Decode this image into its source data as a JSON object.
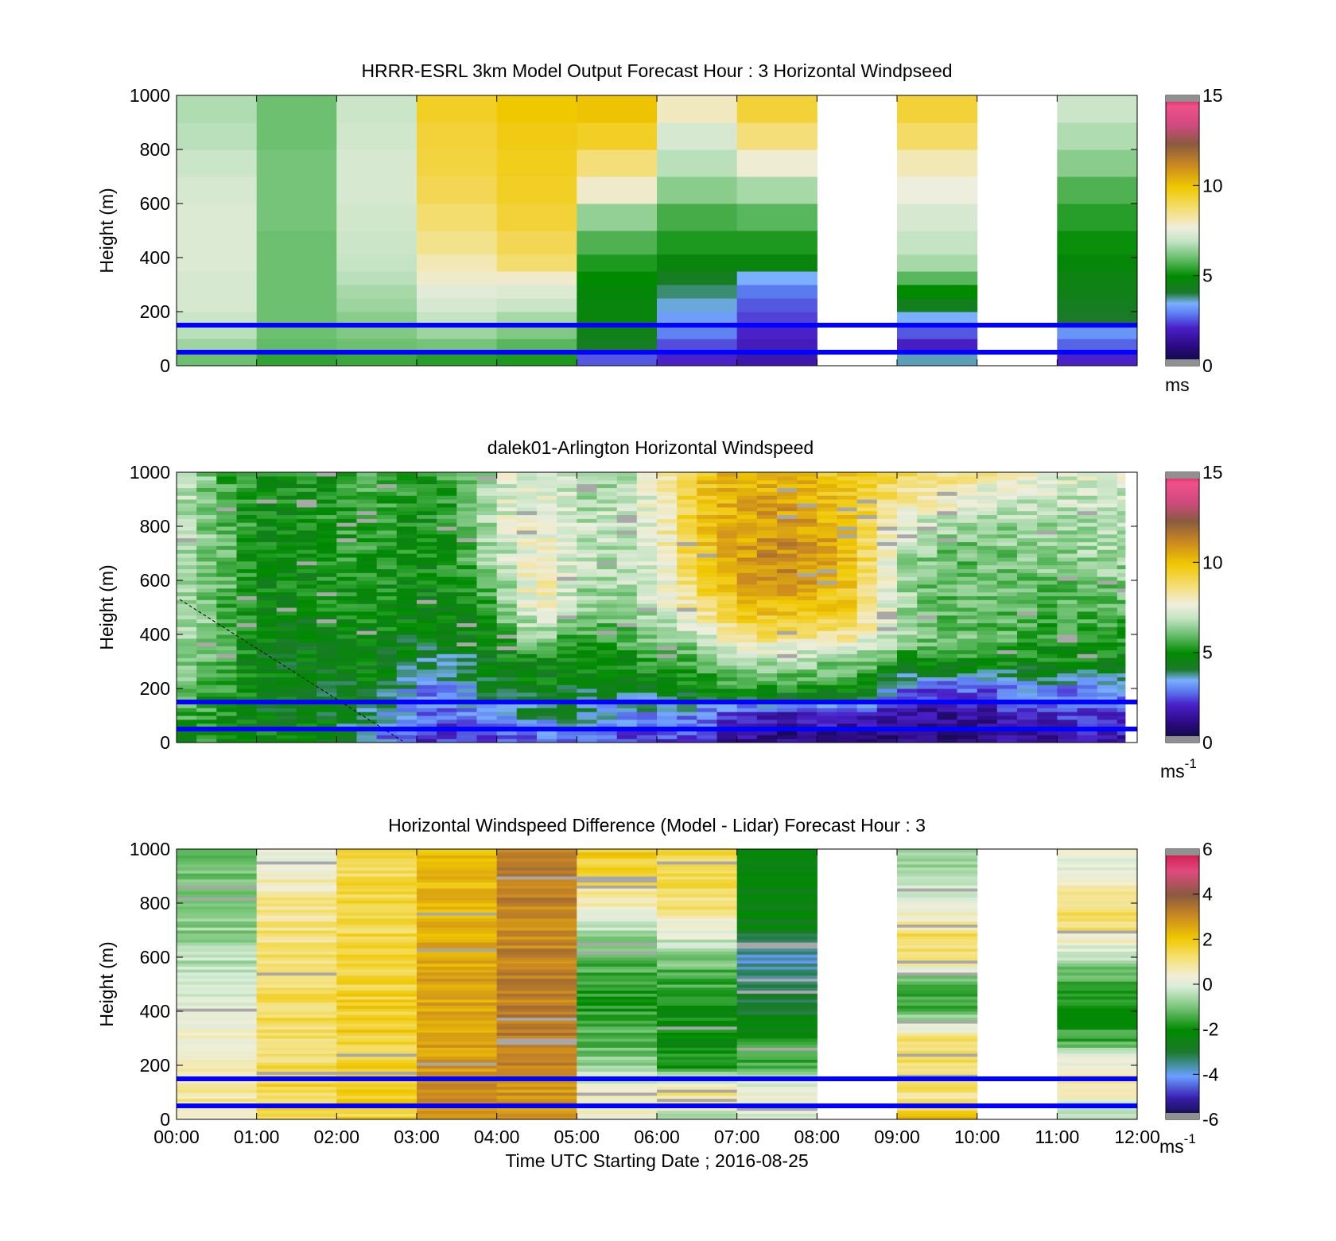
{
  "figure": {
    "xlabel": "Time UTC  Starting Date ; 2016-08-25",
    "x_ticks": [
      "00:00",
      "01:00",
      "02:00",
      "03:00",
      "04:00",
      "05:00",
      "06:00",
      "07:00",
      "08:00",
      "09:00",
      "10:00",
      "11:00",
      "12:00"
    ],
    "guide_line_color": "#0000ff",
    "guide_line_heights_m": [
      150,
      50
    ]
  },
  "panels": [
    {
      "title": "HRRR-ESRL 3km Model Output   Forecast Hour : 3 Horizontal Windpseed",
      "colorbar_unit": "ms",
      "unit_superscript": ""
    },
    {
      "title": "dalek01-Arlington  Horizontal Windspeed",
      "colorbar_unit": "ms",
      "unit_superscript": "-1"
    },
    {
      "title": "Horizontal Windspeed Difference (Model - Lidar) Forecast Hour : 3",
      "colorbar_unit": "ms",
      "unit_superscript": "-1"
    }
  ],
  "chart_data": [
    {
      "type": "heatmap",
      "title": "HRRR-ESRL 3km Model Output   Forecast Hour : 3 Horizontal Windpseed",
      "xlabel": "",
      "ylabel": "Height (m)",
      "y_ticks": [
        "0",
        "200",
        "400",
        "600",
        "800",
        "1000"
      ],
      "ylim": [
        0,
        1000
      ],
      "xlim_hours": [
        0,
        12
      ],
      "colorbar": {
        "ticks": [
          "0",
          "5",
          "10",
          "15"
        ],
        "range": [
          0,
          15
        ],
        "unit": "ms"
      },
      "levels_m": [
        25,
        75,
        125,
        175,
        225,
        275,
        325,
        375,
        450,
        550,
        650,
        750,
        850,
        950
      ],
      "columns": [
        {
          "hour_start": 0,
          "values": [
            6.0,
            6.5,
            6.8,
            7.0,
            7.2,
            7.2,
            7.2,
            7.3,
            7.3,
            7.3,
            7.2,
            7.0,
            6.8,
            6.7
          ]
        },
        {
          "hour_start": 1,
          "values": [
            5.4,
            5.9,
            6.0,
            6.0,
            6.0,
            6.0,
            6.0,
            6.0,
            6.0,
            6.1,
            6.1,
            6.1,
            6.0,
            6.0
          ]
        },
        {
          "hour_start": 2,
          "values": [
            5.5,
            6.0,
            6.2,
            6.3,
            6.5,
            6.6,
            6.8,
            6.9,
            7.0,
            7.1,
            7.2,
            7.2,
            7.1,
            7.0
          ]
        },
        {
          "hour_start": 3,
          "values": [
            5.3,
            6.1,
            6.5,
            6.9,
            7.2,
            7.4,
            7.8,
            8.0,
            8.4,
            8.7,
            9.0,
            9.2,
            9.3,
            9.5
          ]
        },
        {
          "hour_start": 4,
          "values": [
            5.2,
            5.8,
            6.2,
            6.6,
            7.0,
            7.3,
            7.8,
            8.7,
            9.0,
            9.3,
            9.5,
            9.6,
            9.7,
            9.9
          ]
        },
        {
          "hour_start": 5,
          "values": [
            2.5,
            4.2,
            4.4,
            4.6,
            4.6,
            4.7,
            4.9,
            5.2,
            5.7,
            6.4,
            7.8,
            8.6,
            9.5,
            10.0
          ]
        },
        {
          "hour_start": 6,
          "values": [
            2.0,
            2.4,
            2.9,
            3.2,
            3.5,
            3.8,
            4.2,
            4.6,
            5.2,
            5.6,
            6.3,
            6.8,
            7.2,
            7.9
          ]
        },
        {
          "hour_start": 7,
          "values": [
            1.6,
            1.8,
            2.0,
            2.3,
            2.5,
            2.8,
            3.4,
            4.6,
            5.2,
            5.8,
            6.6,
            7.7,
            8.6,
            9.3
          ]
        },
        {
          "hour_start": 8,
          "values": [
            null,
            null,
            null,
            null,
            null,
            null,
            null,
            null,
            null,
            null,
            null,
            null,
            null,
            null
          ]
        },
        {
          "hour_start": 9,
          "values": [
            3.6,
            1.9,
            2.5,
            3.4,
            4.3,
            4.9,
            5.8,
            6.6,
            6.9,
            7.2,
            7.6,
            8.0,
            8.8,
            9.3
          ]
        },
        {
          "hour_start": 10,
          "values": [
            null,
            null,
            null,
            null,
            null,
            null,
            null,
            null,
            null,
            null,
            null,
            null,
            null,
            null
          ]
        },
        {
          "hour_start": 11,
          "values": [
            2.0,
            2.6,
            3.1,
            4.0,
            4.2,
            4.4,
            4.5,
            4.7,
            5.0,
            5.3,
            5.7,
            6.3,
            6.7,
            7.0
          ]
        }
      ],
      "overlay_lines": [
        {
          "heights_m": [
            150,
            50
          ],
          "color": "#0000ff"
        }
      ]
    },
    {
      "type": "heatmap",
      "title": "dalek01-Arlington  Horizontal Windspeed",
      "xlabel": "",
      "ylabel": "Height (m)",
      "y_ticks": [
        "0",
        "200",
        "400",
        "600",
        "800",
        "1000"
      ],
      "ylim": [
        0,
        1000
      ],
      "xlim_hours": [
        0,
        12
      ],
      "data_coverage_hours": [
        0,
        11.85
      ],
      "colorbar": {
        "ticks": [
          "0",
          "5",
          "10",
          "15"
        ],
        "range": [
          0,
          15
        ],
        "unit": "ms-1"
      },
      "column_width_hours": 0.25,
      "profile_heights_m": [
        25,
        100,
        200,
        300,
        400,
        500,
        600,
        700,
        800,
        900,
        1000
      ],
      "profiles": [
        {
          "hour": 0.0,
          "values": [
            5.0,
            5.6,
            6.0,
            6.3,
            6.5,
            6.6,
            6.7,
            6.8,
            7.0,
            7.2,
            7.4
          ]
        },
        {
          "hour": 0.5,
          "values": [
            5.2,
            5.3,
            5.5,
            5.8,
            6.0,
            6.0,
            6.1,
            6.2,
            6.0,
            5.8,
            5.7
          ]
        },
        {
          "hour": 1.0,
          "values": [
            4.8,
            4.6,
            4.5,
            4.6,
            4.6,
            4.7,
            4.8,
            4.9,
            5.0,
            5.1,
            5.0
          ]
        },
        {
          "hour": 1.5,
          "values": [
            4.7,
            4.5,
            4.4,
            4.5,
            4.6,
            4.6,
            4.8,
            4.9,
            4.8,
            4.9,
            5.0
          ]
        },
        {
          "hour": 2.0,
          "values": [
            4.6,
            4.4,
            4.4,
            4.6,
            4.8,
            5.0,
            5.0,
            5.2,
            5.3,
            5.2,
            5.2
          ]
        },
        {
          "hour": 2.5,
          "values": [
            3.2,
            3.6,
            4.6,
            4.7,
            4.8,
            5.0,
            5.1,
            5.3,
            5.4,
            5.6,
            5.7
          ]
        },
        {
          "hour": 3.0,
          "values": [
            2.0,
            2.8,
            3.0,
            4.0,
            4.5,
            4.6,
            4.7,
            4.8,
            4.9,
            5.0,
            5.0
          ]
        },
        {
          "hour": 3.5,
          "values": [
            2.0,
            2.6,
            3.2,
            3.8,
            4.5,
            4.7,
            4.9,
            5.2,
            5.4,
            5.4,
            5.4
          ]
        },
        {
          "hour": 4.0,
          "values": [
            2.2,
            3.0,
            4.2,
            4.6,
            5.1,
            5.6,
            6.2,
            6.8,
            7.0,
            7.1,
            7.0
          ]
        },
        {
          "hour": 4.5,
          "values": [
            2.6,
            3.8,
            4.6,
            4.9,
            6.6,
            8.0,
            8.2,
            7.6,
            8.0,
            7.6,
            7.4
          ]
        },
        {
          "hour": 5.0,
          "values": [
            2.6,
            3.6,
            4.4,
            4.9,
            5.5,
            6.4,
            6.8,
            7.0,
            7.0,
            6.8,
            6.6
          ]
        },
        {
          "hour": 5.5,
          "values": [
            2.5,
            3.2,
            4.2,
            4.8,
            5.6,
            6.2,
            6.6,
            6.8,
            6.8,
            6.6,
            6.5
          ]
        },
        {
          "hour": 6.0,
          "values": [
            2.3,
            3.0,
            4.5,
            5.3,
            6.2,
            7.0,
            7.2,
            7.4,
            7.6,
            7.6,
            7.5
          ]
        },
        {
          "hour": 6.5,
          "values": [
            2.3,
            3.0,
            5.0,
            5.6,
            6.8,
            8.3,
            9.2,
            9.5,
            9.6,
            9.7,
            9.6
          ]
        },
        {
          "hour": 7.0,
          "values": [
            1.5,
            1.8,
            5.4,
            6.4,
            8.7,
            9.6,
            10.4,
            10.6,
            10.4,
            10.4,
            10.2
          ]
        },
        {
          "hour": 7.5,
          "values": [
            1.0,
            1.6,
            5.4,
            6.6,
            8.7,
            10.3,
            11.0,
            11.2,
            11.0,
            10.6,
            10.4
          ]
        },
        {
          "hour": 8.0,
          "values": [
            1.2,
            1.8,
            5.2,
            6.4,
            8.4,
            9.8,
            10.6,
            10.8,
            10.6,
            10.2,
            9.8
          ]
        },
        {
          "hour": 8.5,
          "values": [
            1.2,
            2.0,
            5.0,
            6.2,
            8.4,
            9.4,
            9.6,
            9.6,
            9.5,
            9.6,
            9.5
          ]
        },
        {
          "hour": 9.0,
          "values": [
            1.0,
            1.4,
            3.0,
            5.2,
            6.6,
            6.8,
            6.8,
            7.0,
            7.8,
            8.4,
            8.8
          ]
        },
        {
          "hour": 9.5,
          "values": [
            0.8,
            1.2,
            2.4,
            4.9,
            6.2,
            5.8,
            5.9,
            6.0,
            6.6,
            8.0,
            8.6
          ]
        },
        {
          "hour": 10.0,
          "values": [
            1.0,
            1.4,
            2.6,
            5.0,
            6.0,
            5.8,
            5.8,
            6.0,
            6.4,
            7.4,
            8.2
          ]
        },
        {
          "hour": 10.5,
          "values": [
            1.4,
            1.8,
            3.0,
            5.0,
            5.6,
            5.8,
            6.0,
            6.1,
            6.4,
            7.0,
            7.8
          ]
        },
        {
          "hour": 11.0,
          "values": [
            1.6,
            2.0,
            3.0,
            4.9,
            5.3,
            5.6,
            6.0,
            6.4,
            6.6,
            7.0,
            7.4
          ]
        },
        {
          "hour": 11.5,
          "values": [
            1.6,
            2.2,
            3.0,
            4.8,
            5.3,
            5.8,
            6.2,
            6.6,
            6.8,
            7.0,
            7.2
          ]
        },
        {
          "hour": 11.85,
          "values": [
            1.6,
            2.2,
            3.0,
            4.8,
            5.3,
            5.8,
            6.2,
            6.6,
            6.8,
            7.0,
            7.2
          ]
        }
      ],
      "overlay_lines": [
        {
          "heights_m": [
            150,
            50
          ],
          "color": "#0000ff"
        }
      ]
    },
    {
      "type": "heatmap",
      "title": "Horizontal Windspeed Difference (Model - Lidar) Forecast Hour : 3",
      "xlabel": "Time UTC  Starting Date ; 2016-08-25",
      "ylabel": "Height (m)",
      "y_ticks": [
        "0",
        "200",
        "400",
        "600",
        "800",
        "1000"
      ],
      "ylim": [
        0,
        1000
      ],
      "xlim_hours": [
        0,
        12
      ],
      "colorbar": {
        "ticks": [
          "-6",
          "-4",
          "-2",
          "0",
          "2",
          "4",
          "6"
        ],
        "range": [
          -6,
          6
        ],
        "unit": "ms-1"
      },
      "profile_heights_m": [
        0,
        50,
        100,
        150,
        200,
        300,
        400,
        500,
        600,
        700,
        800,
        900,
        1000
      ],
      "columns": [
        {
          "hour_start": 0,
          "values": [
            0.8,
            0.9,
            0.8,
            0.5,
            0.4,
            0.3,
            0.0,
            -0.2,
            -0.5,
            -0.8,
            -1.0,
            -1.0,
            -1.1
          ]
        },
        {
          "hour_start": 1,
          "values": [
            1.3,
            1.4,
            1.5,
            1.4,
            1.3,
            1.3,
            1.3,
            1.2,
            1.2,
            1.1,
            0.9,
            0.5,
            0.2
          ]
        },
        {
          "hour_start": 2,
          "values": [
            1.6,
            1.8,
            1.8,
            1.8,
            1.7,
            1.7,
            1.7,
            1.6,
            1.5,
            1.5,
            1.5,
            1.4,
            1.4
          ]
        },
        {
          "hour_start": 3,
          "values": [
            2.8,
            2.9,
            2.9,
            2.8,
            2.6,
            2.6,
            2.6,
            2.5,
            2.4,
            2.4,
            2.3,
            2.2,
            2.1
          ]
        },
        {
          "hour_start": 4,
          "values": [
            2.6,
            2.8,
            2.8,
            2.9,
            3.0,
            3.2,
            3.3,
            3.2,
            3.2,
            3.1,
            3.2,
            3.2,
            3.2
          ]
        },
        {
          "hour_start": 5,
          "values": [
            0.4,
            0.5,
            0.4,
            -0.2,
            -0.8,
            -1.4,
            -1.7,
            -1.7,
            -1.2,
            -0.6,
            0.6,
            1.4,
            1.8
          ]
        },
        {
          "hour_start": 6,
          "values": [
            -1.3,
            0.8,
            1.2,
            -0.3,
            -1.8,
            -2.1,
            -2.0,
            -1.6,
            -1.0,
            0.2,
            1.2,
            1.4,
            1.4
          ]
        },
        {
          "hour_start": 7,
          "values": [
            -0.2,
            0.3,
            0.3,
            -0.5,
            -1.3,
            -2.0,
            -2.8,
            -3.3,
            -3.9,
            -2.6,
            -2.3,
            -2.1,
            -2.0
          ]
        },
        {
          "hour_start": 8,
          "values": [
            null,
            null,
            null,
            null,
            null,
            null,
            null,
            null,
            null,
            null,
            null,
            null,
            null
          ]
        },
        {
          "hour_start": 9,
          "values": [
            2.2,
            1.0,
            1.0,
            1.2,
            1.3,
            1.2,
            -1.3,
            -1.6,
            1.4,
            1.2,
            -0.2,
            -0.6,
            -0.7
          ]
        },
        {
          "hour_start": 10,
          "values": [
            null,
            null,
            null,
            null,
            null,
            null,
            null,
            null,
            null,
            null,
            null,
            null,
            null
          ]
        },
        {
          "hour_start": 11,
          "values": [
            -0.8,
            -0.6,
            0.8,
            1.2,
            0.4,
            -1.6,
            -2.1,
            -1.7,
            -0.5,
            1.0,
            1.2,
            0.2,
            0.1
          ]
        }
      ],
      "overlay_lines": [
        {
          "heights_m": [
            150,
            50
          ],
          "color": "#0000ff"
        }
      ]
    }
  ]
}
